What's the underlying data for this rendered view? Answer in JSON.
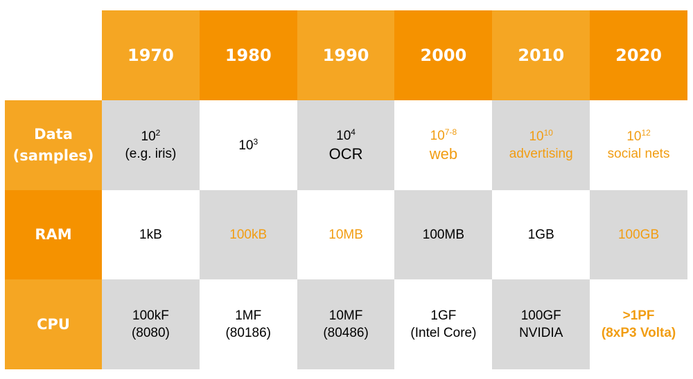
{
  "table": {
    "header": {
      "years": [
        "1970",
        "1980",
        "1990",
        "2000",
        "2010",
        "2020"
      ]
    },
    "rows": [
      {
        "label": "Data\n(samples)",
        "cells": [
          {
            "base": "10",
            "exp": "2",
            "sub": "(e.g. iris)",
            "highlight": false
          },
          {
            "base": "10",
            "exp": "3",
            "sub": "",
            "highlight": false
          },
          {
            "base": "10",
            "exp": "4",
            "sub": "OCR",
            "highlight": false
          },
          {
            "base": "10",
            "exp": "7-8",
            "sub": "web",
            "highlight": true
          },
          {
            "base": "10",
            "exp": "10",
            "sub": "advertising",
            "highlight": true
          },
          {
            "base": "10",
            "exp": "12",
            "sub": "social nets",
            "highlight": true
          }
        ]
      },
      {
        "label": "RAM",
        "cells": [
          {
            "text": "1kB",
            "highlight": false
          },
          {
            "text": "100kB",
            "highlight": true
          },
          {
            "text": "10MB",
            "highlight": true
          },
          {
            "text": "100MB",
            "highlight": false
          },
          {
            "text": "1GB",
            "highlight": false
          },
          {
            "text": "100GB",
            "highlight": true
          }
        ]
      },
      {
        "label": "CPU",
        "cells": [
          {
            "text": "100kF\n(8080)",
            "highlight": false
          },
          {
            "text": "1MF\n(80186)",
            "highlight": false
          },
          {
            "text": "10MF\n(80486)",
            "highlight": false
          },
          {
            "text": "1GF\n(Intel Core)",
            "highlight": false
          },
          {
            "text": "100GF\nNVIDIA",
            "highlight": false
          },
          {
            "text": ">1PF\n(8xP3 Volta)",
            "highlight": true,
            "bold": true
          }
        ]
      }
    ]
  },
  "colors": {
    "orange_light": "#f5a623",
    "orange_dark": "#f59200",
    "gray": "#d9d9d9",
    "highlight_text": "#f19d13"
  }
}
